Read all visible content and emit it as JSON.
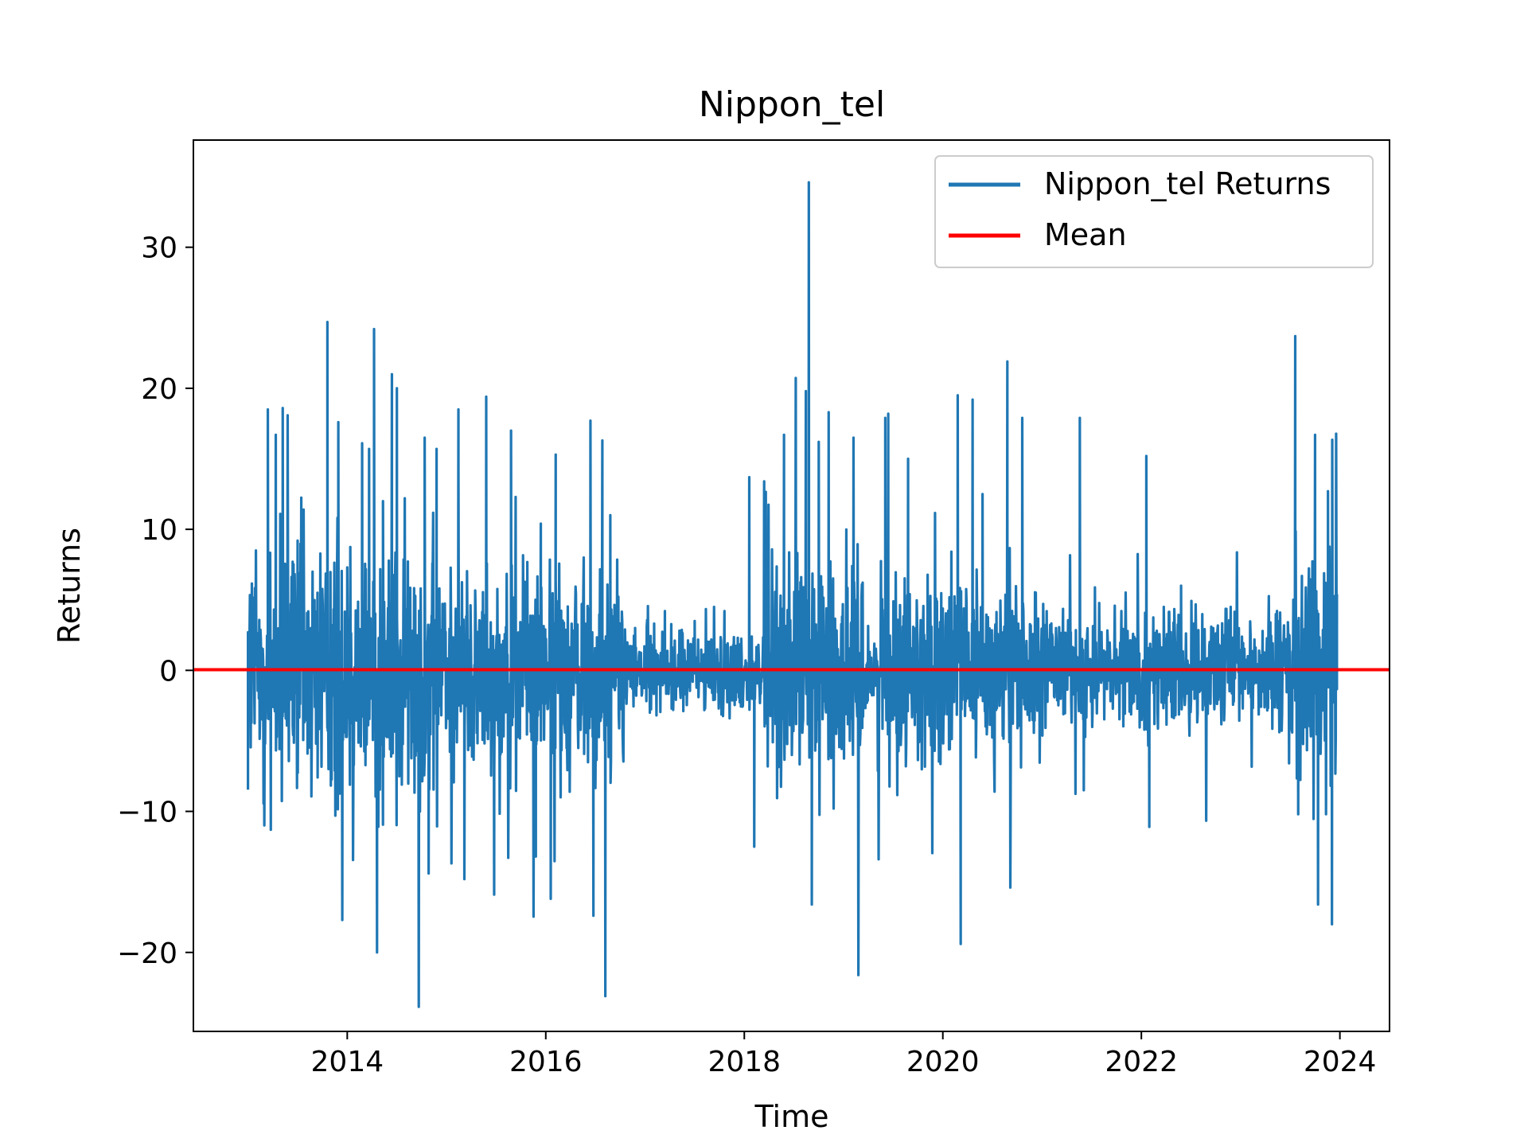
{
  "chart_data": {
    "type": "line",
    "title": "Nippon_tel",
    "xlabel": "Time",
    "ylabel": "Returns",
    "x_range": [
      2012.45,
      2024.5
    ],
    "xlim": [
      2012.45,
      2024.5
    ],
    "ylim": [
      -25.6,
      37.6
    ],
    "x_ticks": [
      2014,
      2016,
      2018,
      2020,
      2022,
      2024
    ],
    "x_tick_labels": [
      "2014",
      "2016",
      "2018",
      "2020",
      "2022",
      "2024"
    ],
    "y_ticks": [
      -20,
      -10,
      0,
      10,
      20,
      30
    ],
    "y_tick_labels": [
      "−20",
      "−10",
      "0",
      "10",
      "20",
      "30"
    ],
    "grid": false,
    "legend_position": "top-right",
    "series": [
      {
        "name": "Nippon_tel Returns",
        "color": "#1f77b4",
        "x": [
          2013.0,
          2013.03,
          2013.08,
          2013.12,
          2013.2,
          2013.23,
          2013.28,
          2013.35,
          2013.45,
          2013.5,
          2013.6,
          2013.7,
          2013.8,
          2013.88,
          2013.91,
          2013.95,
          2014.0,
          2014.15,
          2014.22,
          2014.27,
          2014.3,
          2014.36,
          2014.45,
          2014.5,
          2014.55,
          2014.78,
          2014.82,
          2014.9,
          2015.12,
          2015.18,
          2015.4,
          2015.48,
          2015.65,
          2015.9,
          2015.95,
          2016.05,
          2016.1,
          2016.15,
          2016.45,
          2016.48,
          2016.57,
          2016.6,
          2016.65,
          2016.9,
          2017.2,
          2017.5,
          2017.8,
          2018.05,
          2018.1,
          2018.2,
          2018.4,
          2018.62,
          2018.65,
          2018.68,
          2018.75,
          2018.85,
          2018.9,
          2019.1,
          2019.42,
          2019.45,
          2019.65,
          2020.15,
          2020.18,
          2020.3,
          2020.4,
          2020.65,
          2020.68,
          2020.8,
          2021.38,
          2021.42,
          2022.05,
          2022.08,
          2022.4,
          2022.9,
          2023.3,
          2023.55,
          2023.58,
          2023.75,
          2023.78,
          2023.88,
          2023.92,
          2023.97
        ],
        "values": [
          2.7,
          -1.4,
          8.5,
          -3.8,
          18.5,
          -11.3,
          16.7,
          18.6,
          7.7,
          9.2,
          -5.9,
          5.5,
          24.7,
          -10.3,
          17.6,
          -17.7,
          7.3,
          16.1,
          15.7,
          24.2,
          -20.0,
          12.0,
          21.0,
          20.0,
          -8.1,
          16.5,
          -14.4,
          15.7,
          18.5,
          -14.8,
          19.4,
          -15.9,
          17.0,
          -13.2,
          10.4,
          -16.2,
          15.3,
          -9.0,
          17.7,
          -17.4,
          16.3,
          -23.1,
          11.0,
          3.0,
          4.2,
          3.5,
          4.2,
          13.7,
          -12.5,
          13.4,
          16.7,
          19.8,
          34.6,
          -16.6,
          16.2,
          18.3,
          -9.8,
          16.5,
          17.9,
          18.2,
          15.0,
          19.5,
          -19.4,
          19.2,
          12.5,
          21.9,
          -15.4,
          17.9,
          17.9,
          -8.5,
          15.2,
          -11.1,
          6.0,
          4.5,
          3.4,
          23.7,
          -10.2,
          16.7,
          -16.6,
          12.7,
          -18.0,
          5.4
        ]
      },
      {
        "name": "Mean",
        "color": "#ff0000",
        "value": 0.05
      }
    ]
  }
}
